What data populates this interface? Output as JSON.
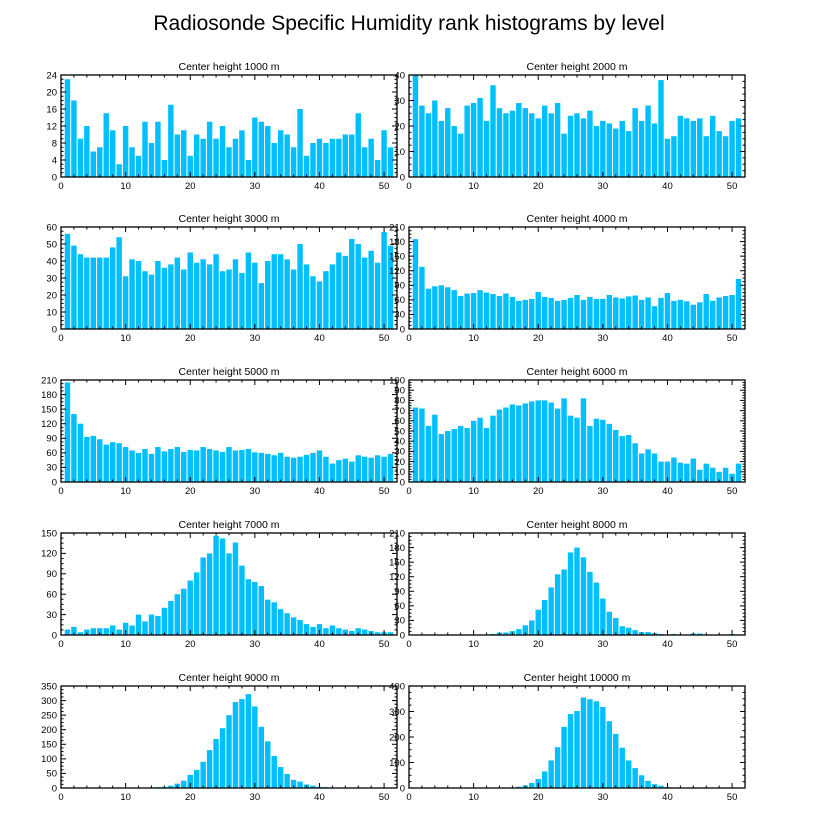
{
  "page_title": "Radiosonde Specific Humidity rank histograms by level",
  "colors": {
    "bar": "#00bfff",
    "axis": "#000000",
    "background": "#ffffff"
  },
  "chart_data": [
    {
      "type": "bar",
      "title": "Center height 1000 m",
      "xlim": [
        0,
        52
      ],
      "ylim": [
        0,
        24
      ],
      "xticks": [
        0,
        10,
        20,
        30,
        40,
        50
      ],
      "yticks": [
        0,
        4,
        8,
        12,
        16,
        20,
        24
      ],
      "x": [
        1,
        2,
        3,
        4,
        5,
        6,
        7,
        8,
        9,
        10,
        11,
        12,
        13,
        14,
        15,
        16,
        17,
        18,
        19,
        20,
        21,
        22,
        23,
        24,
        25,
        26,
        27,
        28,
        29,
        30,
        31,
        32,
        33,
        34,
        35,
        36,
        37,
        38,
        39,
        40,
        41,
        42,
        43,
        44,
        45,
        46,
        47,
        48,
        49,
        50,
        51
      ],
      "values": [
        23,
        18,
        9,
        12,
        6,
        7,
        15,
        11,
        3,
        12,
        7,
        5,
        13,
        8,
        13,
        4,
        17,
        10,
        11,
        5,
        10,
        9,
        13,
        9,
        12,
        7,
        9,
        11,
        4,
        14,
        13,
        12,
        8,
        11,
        10,
        7,
        16,
        5,
        8,
        9,
        8,
        9,
        9,
        10,
        10,
        15,
        7,
        9,
        4,
        11,
        7
      ]
    },
    {
      "type": "bar",
      "title": "Center height 2000 m",
      "xlim": [
        0,
        52
      ],
      "ylim": [
        0,
        40
      ],
      "xticks": [
        0,
        10,
        20,
        30,
        40,
        50
      ],
      "yticks": [
        0,
        10,
        20,
        30,
        40
      ],
      "x": [
        1,
        2,
        3,
        4,
        5,
        6,
        7,
        8,
        9,
        10,
        11,
        12,
        13,
        14,
        15,
        16,
        17,
        18,
        19,
        20,
        21,
        22,
        23,
        24,
        25,
        26,
        27,
        28,
        29,
        30,
        31,
        32,
        33,
        34,
        35,
        36,
        37,
        38,
        39,
        40,
        41,
        42,
        43,
        44,
        45,
        46,
        47,
        48,
        49,
        50,
        51
      ],
      "values": [
        40,
        28,
        25,
        30,
        22,
        27,
        20,
        17,
        28,
        29,
        31,
        22,
        36,
        27,
        25,
        26,
        29,
        27,
        25,
        23,
        28,
        25,
        29,
        17,
        24,
        25,
        23,
        26,
        20,
        22,
        21,
        19,
        22,
        18,
        27,
        22,
        28,
        21,
        38,
        15,
        16,
        24,
        23,
        22,
        23,
        16,
        24,
        18,
        16,
        22,
        23
      ]
    },
    {
      "type": "bar",
      "title": "Center height 3000 m",
      "xlim": [
        0,
        52
      ],
      "ylim": [
        0,
        60
      ],
      "xticks": [
        0,
        10,
        20,
        30,
        40,
        50
      ],
      "yticks": [
        0,
        10,
        20,
        30,
        40,
        50,
        60
      ],
      "x": [
        1,
        2,
        3,
        4,
        5,
        6,
        7,
        8,
        9,
        10,
        11,
        12,
        13,
        14,
        15,
        16,
        17,
        18,
        19,
        20,
        21,
        22,
        23,
        24,
        25,
        26,
        27,
        28,
        29,
        30,
        31,
        32,
        33,
        34,
        35,
        36,
        37,
        38,
        39,
        40,
        41,
        42,
        43,
        44,
        45,
        46,
        47,
        48,
        49,
        50,
        51
      ],
      "values": [
        56,
        49,
        44,
        42,
        42,
        42,
        42,
        48,
        54,
        31,
        41,
        40,
        34,
        32,
        40,
        36,
        38,
        42,
        35,
        45,
        39,
        41,
        38,
        44,
        34,
        35,
        41,
        33,
        45,
        39,
        27,
        40,
        44,
        44,
        41,
        35,
        50,
        38,
        31,
        28,
        34,
        38,
        45,
        43,
        53,
        50,
        42,
        46,
        39,
        57,
        49
      ]
    },
    {
      "type": "bar",
      "title": "Center height 4000 m",
      "xlim": [
        0,
        52
      ],
      "ylim": [
        0,
        210
      ],
      "xticks": [
        0,
        10,
        20,
        30,
        40,
        50
      ],
      "yticks": [
        0,
        30,
        60,
        90,
        120,
        150,
        180,
        210
      ],
      "x": [
        1,
        2,
        3,
        4,
        5,
        6,
        7,
        8,
        9,
        10,
        11,
        12,
        13,
        14,
        15,
        16,
        17,
        18,
        19,
        20,
        21,
        22,
        23,
        24,
        25,
        26,
        27,
        28,
        29,
        30,
        31,
        32,
        33,
        34,
        35,
        36,
        37,
        38,
        39,
        40,
        41,
        42,
        43,
        44,
        45,
        46,
        47,
        48,
        49,
        50,
        51
      ],
      "values": [
        185,
        128,
        83,
        88,
        90,
        86,
        80,
        68,
        73,
        74,
        80,
        75,
        72,
        68,
        73,
        66,
        58,
        60,
        62,
        76,
        66,
        64,
        58,
        60,
        64,
        70,
        60,
        66,
        62,
        62,
        70,
        65,
        63,
        67,
        69,
        60,
        65,
        47,
        64,
        74,
        58,
        60,
        57,
        50,
        55,
        72,
        58,
        65,
        68,
        70,
        103
      ]
    },
    {
      "type": "bar",
      "title": "Center height 5000 m",
      "xlim": [
        0,
        52
      ],
      "ylim": [
        0,
        210
      ],
      "xticks": [
        0,
        10,
        20,
        30,
        40,
        50
      ],
      "yticks": [
        0,
        30,
        60,
        90,
        120,
        150,
        180,
        210
      ],
      "x": [
        1,
        2,
        3,
        4,
        5,
        6,
        7,
        8,
        9,
        10,
        11,
        12,
        13,
        14,
        15,
        16,
        17,
        18,
        19,
        20,
        21,
        22,
        23,
        24,
        25,
        26,
        27,
        28,
        29,
        30,
        31,
        32,
        33,
        34,
        35,
        36,
        37,
        38,
        39,
        40,
        41,
        42,
        43,
        44,
        45,
        46,
        47,
        48,
        49,
        50,
        51
      ],
      "values": [
        205,
        140,
        120,
        93,
        95,
        88,
        77,
        82,
        80,
        72,
        65,
        60,
        68,
        58,
        72,
        63,
        68,
        72,
        62,
        66,
        65,
        72,
        68,
        65,
        62,
        72,
        65,
        66,
        68,
        61,
        60,
        58,
        55,
        60,
        52,
        50,
        52,
        56,
        60,
        65,
        52,
        38,
        45,
        48,
        42,
        55,
        52,
        50,
        55,
        52,
        58
      ]
    },
    {
      "type": "bar",
      "title": "Center height 6000 m",
      "xlim": [
        0,
        52
      ],
      "ylim": [
        0,
        100
      ],
      "xticks": [
        0,
        10,
        20,
        30,
        40,
        50
      ],
      "yticks": [
        0,
        10,
        20,
        30,
        40,
        50,
        60,
        70,
        80,
        90,
        100
      ],
      "x": [
        1,
        2,
        3,
        4,
        5,
        6,
        7,
        8,
        9,
        10,
        11,
        12,
        13,
        14,
        15,
        16,
        17,
        18,
        19,
        20,
        21,
        22,
        23,
        24,
        25,
        26,
        27,
        28,
        29,
        30,
        31,
        32,
        33,
        34,
        35,
        36,
        37,
        38,
        39,
        40,
        41,
        42,
        43,
        44,
        45,
        46,
        47,
        48,
        49,
        50,
        51
      ],
      "values": [
        73,
        72,
        55,
        66,
        47,
        50,
        52,
        55,
        53,
        60,
        63,
        53,
        65,
        71,
        73,
        76,
        75,
        77,
        79,
        80,
        80,
        78,
        72,
        82,
        65,
        63,
        82,
        55,
        62,
        61,
        57,
        51,
        45,
        46,
        38,
        28,
        32,
        28,
        20,
        20,
        24,
        19,
        18,
        23,
        12,
        18,
        14,
        10,
        14,
        8,
        18
      ]
    },
    {
      "type": "bar",
      "title": "Center height 7000 m",
      "xlim": [
        0,
        52
      ],
      "ylim": [
        0,
        150
      ],
      "xticks": [
        0,
        10,
        20,
        30,
        40,
        50
      ],
      "yticks": [
        0,
        30,
        60,
        90,
        120,
        150
      ],
      "x": [
        1,
        2,
        3,
        4,
        5,
        6,
        7,
        8,
        9,
        10,
        11,
        12,
        13,
        14,
        15,
        16,
        17,
        18,
        19,
        20,
        21,
        22,
        23,
        24,
        25,
        26,
        27,
        28,
        29,
        30,
        31,
        32,
        33,
        34,
        35,
        36,
        37,
        38,
        39,
        40,
        41,
        42,
        43,
        44,
        45,
        46,
        47,
        48,
        49,
        50,
        51
      ],
      "values": [
        8,
        12,
        4,
        8,
        10,
        10,
        10,
        14,
        8,
        18,
        14,
        30,
        20,
        30,
        28,
        40,
        50,
        60,
        68,
        80,
        92,
        114,
        120,
        146,
        142,
        120,
        136,
        102,
        82,
        78,
        72,
        52,
        48,
        38,
        32,
        26,
        22,
        16,
        12,
        16,
        10,
        14,
        10,
        8,
        6,
        10,
        8,
        6,
        4,
        4,
        4
      ]
    },
    {
      "type": "bar",
      "title": "Center height 8000 m",
      "xlim": [
        0,
        52
      ],
      "ylim": [
        0,
        210
      ],
      "xticks": [
        0,
        10,
        20,
        30,
        40,
        50
      ],
      "yticks": [
        0,
        30,
        60,
        90,
        120,
        150,
        180,
        210
      ],
      "x": [
        1,
        2,
        3,
        4,
        5,
        6,
        7,
        8,
        9,
        10,
        11,
        12,
        13,
        14,
        15,
        16,
        17,
        18,
        19,
        20,
        21,
        22,
        23,
        24,
        25,
        26,
        27,
        28,
        29,
        30,
        31,
        32,
        33,
        34,
        35,
        36,
        37,
        38,
        39,
        40,
        41,
        42,
        43,
        44,
        45,
        46,
        47,
        48,
        49,
        50,
        51
      ],
      "values": [
        1,
        1,
        1,
        0,
        1,
        1,
        0,
        1,
        1,
        1,
        1,
        1,
        2,
        5,
        5,
        8,
        12,
        20,
        30,
        52,
        72,
        98,
        125,
        135,
        170,
        180,
        160,
        130,
        108,
        75,
        48,
        35,
        18,
        15,
        10,
        6,
        6,
        4,
        2,
        1,
        2,
        1,
        1,
        3,
        3,
        1,
        1,
        1,
        1,
        2,
        1
      ]
    },
    {
      "type": "bar",
      "title": "Center height 9000 m",
      "xlim": [
        0,
        52
      ],
      "ylim": [
        0,
        350
      ],
      "xticks": [
        0,
        10,
        20,
        30,
        40,
        50
      ],
      "yticks": [
        0,
        50,
        100,
        150,
        200,
        250,
        300,
        350
      ],
      "x": [
        1,
        2,
        3,
        4,
        5,
        6,
        7,
        8,
        9,
        10,
        11,
        12,
        13,
        14,
        15,
        16,
        17,
        18,
        19,
        20,
        21,
        22,
        23,
        24,
        25,
        26,
        27,
        28,
        29,
        30,
        31,
        32,
        33,
        34,
        35,
        36,
        37,
        38,
        39,
        40,
        41,
        42,
        43,
        44,
        45,
        46,
        47,
        48,
        49,
        50,
        51
      ],
      "values": [
        0,
        0,
        0,
        0,
        0,
        0,
        0,
        0,
        0,
        0,
        0,
        0,
        1,
        2,
        3,
        4,
        8,
        15,
        25,
        45,
        62,
        90,
        130,
        168,
        205,
        250,
        295,
        305,
        322,
        280,
        210,
        160,
        110,
        72,
        48,
        28,
        22,
        12,
        8,
        4,
        3,
        2,
        1,
        1,
        1,
        1,
        0,
        0,
        0,
        0,
        0
      ]
    },
    {
      "type": "bar",
      "title": "Center height 10000 m",
      "xlim": [
        0,
        52
      ],
      "ylim": [
        0,
        400
      ],
      "xticks": [
        0,
        10,
        20,
        30,
        40,
        50
      ],
      "yticks": [
        0,
        100,
        200,
        300,
        400
      ],
      "x": [
        1,
        2,
        3,
        4,
        5,
        6,
        7,
        8,
        9,
        10,
        11,
        12,
        13,
        14,
        15,
        16,
        17,
        18,
        19,
        20,
        21,
        22,
        23,
        24,
        25,
        26,
        27,
        28,
        29,
        30,
        31,
        32,
        33,
        34,
        35,
        36,
        37,
        38,
        39,
        40,
        41,
        42,
        43,
        44,
        45,
        46,
        47,
        48,
        49,
        50,
        51
      ],
      "values": [
        0,
        0,
        0,
        0,
        0,
        0,
        0,
        0,
        0,
        0,
        0,
        0,
        0,
        1,
        1,
        2,
        5,
        10,
        20,
        35,
        65,
        108,
        160,
        240,
        290,
        302,
        355,
        348,
        340,
        318,
        262,
        212,
        158,
        108,
        78,
        50,
        28,
        15,
        9,
        4,
        2,
        1,
        1,
        0,
        0,
        0,
        0,
        0,
        0,
        0,
        0
      ]
    }
  ]
}
